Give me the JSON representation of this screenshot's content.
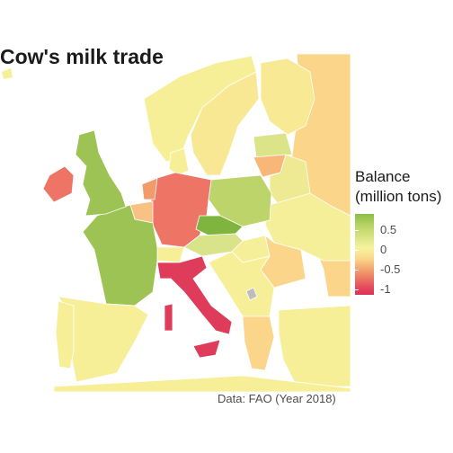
{
  "title": "Cow's milk trade",
  "caption": "Data: FAO (Year 2018)",
  "legend": {
    "title": "Balance\n(million tons)",
    "ticks": [
      "0.5",
      "0",
      "-0.5",
      "-1"
    ],
    "colors": {
      "high": "#8bbd45",
      "mid_high": "#b7d366",
      "zero": "#f7f3a0",
      "mid_low": "#fbd58a",
      "low": "#f19a6a",
      "lowest": "#dd3058"
    }
  },
  "map": {
    "sea_color": "#ffffff",
    "no_data_color": "#bdbdbd",
    "countries": [
      {
        "name": "United Kingdom",
        "color": "#9cc353"
      },
      {
        "name": "Ireland",
        "color": "#ee7466"
      },
      {
        "name": "France",
        "color": "#9cc353"
      },
      {
        "name": "Spain",
        "color": "#f7ef98"
      },
      {
        "name": "Portugal",
        "color": "#f7ef98"
      },
      {
        "name": "Germany",
        "color": "#ee7466"
      },
      {
        "name": "Netherlands",
        "color": "#f19a6a"
      },
      {
        "name": "Belgium",
        "color": "#f9c183"
      },
      {
        "name": "Switzerland",
        "color": "#f7ef98"
      },
      {
        "name": "Italy",
        "color": "#de3c5a"
      },
      {
        "name": "Austria",
        "color": "#d8e38a"
      },
      {
        "name": "Czechia",
        "color": "#7fb43f"
      },
      {
        "name": "Poland",
        "color": "#bcd46a"
      },
      {
        "name": "Denmark",
        "color": "#f7ef98"
      },
      {
        "name": "Norway",
        "color": "#f7ef98"
      },
      {
        "name": "Sweden",
        "color": "#f9e893"
      },
      {
        "name": "Finland",
        "color": "#f8e994"
      },
      {
        "name": "Russia",
        "color": "#fbd58a"
      },
      {
        "name": "Baltics",
        "color": "#dbe489"
      },
      {
        "name": "Lithuania",
        "color": "#f9b679"
      },
      {
        "name": "Belarus",
        "color": "#eeea94"
      },
      {
        "name": "Ukraine",
        "color": "#f4ef98"
      },
      {
        "name": "Hungary",
        "color": "#f4ef98"
      },
      {
        "name": "Romania",
        "color": "#fbd58a"
      },
      {
        "name": "Balkans",
        "color": "#f7ef98"
      },
      {
        "name": "Greece",
        "color": "#fbd58a"
      },
      {
        "name": "Turkey",
        "color": "#f7ef98"
      },
      {
        "name": "Kosovo",
        "color": "#bdbdbd"
      }
    ]
  }
}
